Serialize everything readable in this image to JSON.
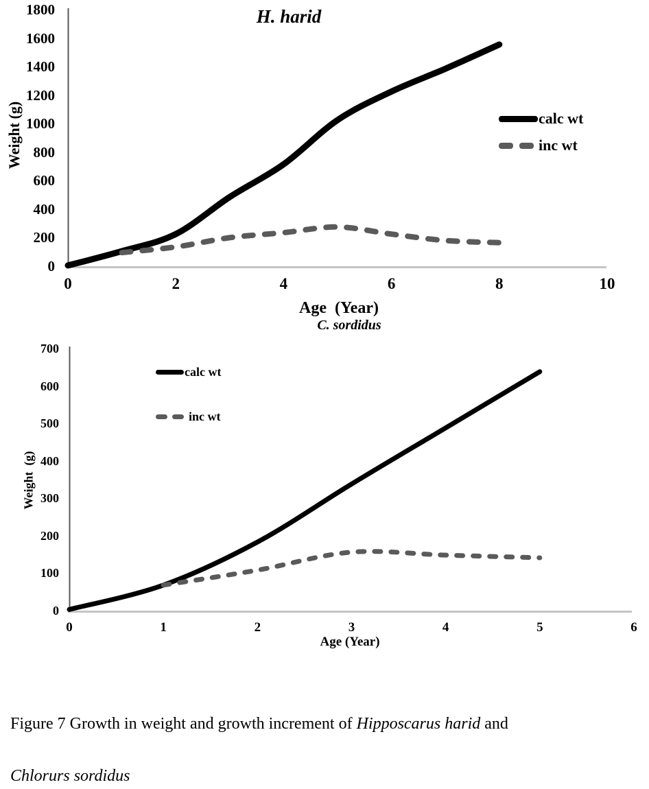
{
  "figure": {
    "caption": {
      "prefix": "Figure 7 Growth in weight and growth increment of ",
      "species1": "Hipposcarus harid",
      "middle": " and",
      "species2": "Chlorurs sordidus"
    }
  },
  "colors": {
    "calc_wt": "#000000",
    "inc_wt": "#5a5a5a",
    "y_axis": "#595959",
    "baseline": "#c4c4c4"
  },
  "chart_data": [
    {
      "type": "line",
      "title": "H. harid",
      "xlabel": "Age  (Year)",
      "ylabel": "Weight (g)",
      "xlim": [
        0,
        10
      ],
      "ylim": [
        0,
        1800
      ],
      "xticks": [
        0,
        2,
        4,
        6,
        8,
        10
      ],
      "yticks": [
        0,
        200,
        400,
        600,
        800,
        1000,
        1200,
        1400,
        1600,
        1800
      ],
      "grid": false,
      "legend_position": "right-inside",
      "series": [
        {
          "name": "calc wt",
          "style": "solid",
          "color": "#000000",
          "x": [
            0,
            1,
            2,
            3,
            4,
            5,
            6,
            7,
            8
          ],
          "y": [
            10,
            110,
            230,
            490,
            720,
            1030,
            1230,
            1390,
            1560
          ]
        },
        {
          "name": "inc wt",
          "style": "dashed",
          "color": "#5a5a5a",
          "x": [
            1,
            2,
            3,
            4,
            5,
            6,
            7,
            8
          ],
          "y": [
            100,
            140,
            205,
            240,
            280,
            230,
            185,
            170
          ]
        }
      ]
    },
    {
      "type": "line",
      "title": "C. sordidus",
      "xlabel": "Age (Year)",
      "ylabel": "Weight  (g)",
      "xlim": [
        0,
        6
      ],
      "ylim": [
        0,
        700
      ],
      "xticks": [
        0,
        1,
        2,
        3,
        4,
        5,
        6
      ],
      "yticks": [
        0,
        100,
        200,
        300,
        400,
        500,
        600,
        700
      ],
      "grid": false,
      "legend_position": "left-inside",
      "series": [
        {
          "name": "calc wt",
          "style": "solid",
          "color": "#000000",
          "x": [
            0,
            1,
            2,
            3,
            4,
            5
          ],
          "y": [
            5,
            70,
            185,
            340,
            490,
            640
          ]
        },
        {
          "name": "inc wt",
          "style": "dashed",
          "color": "#5a5a5a",
          "x": [
            1,
            2,
            3,
            4,
            5
          ],
          "y": [
            70,
            110,
            158,
            150,
            143
          ]
        }
      ]
    }
  ]
}
